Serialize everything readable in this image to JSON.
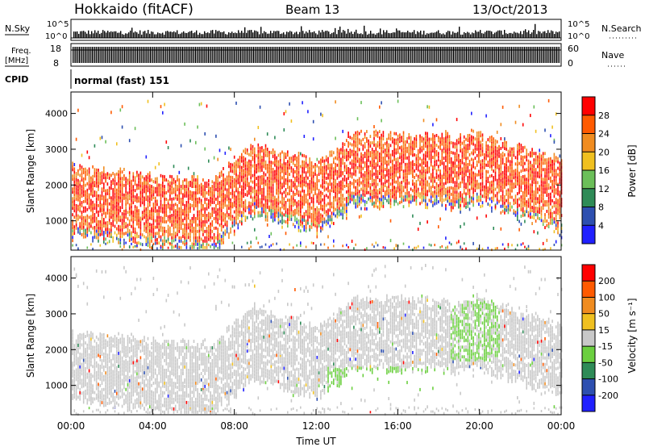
{
  "header": {
    "station": "Hokkaido (fitACF)",
    "beam": "Beam 13",
    "date": "13/Oct/2013"
  },
  "top_panels": {
    "nsky_label": "N.Sky",
    "nsky_ticks": [
      "10^5",
      "10^0"
    ],
    "nsearch_label": "N.Search",
    "nsearch_ticks": [
      "10^5",
      "10^0"
    ],
    "freq_label_line1": "Freq.",
    "freq_label_line2": "[MHz]",
    "freq_ticks": [
      "18",
      "8"
    ],
    "nave_label": "Nave",
    "nave_ticks": [
      "60",
      "0"
    ],
    "cpid_label": "CPID",
    "cpid_text": "normal (fast) 151"
  },
  "chart_data": [
    {
      "type": "heatmap",
      "name": "power-panel",
      "ylabel": "Slant Range [km]",
      "yticks": [
        1000,
        2000,
        3000,
        4000
      ],
      "ylim": [
        180,
        4600
      ],
      "xlim": [
        0,
        24
      ],
      "colorbar": {
        "label": "Power [dB]",
        "tick_labels": [
          "28",
          "24",
          "20",
          "16",
          "12",
          "8",
          "4"
        ],
        "colors": [
          "#2020ff",
          "#2d4fb0",
          "#2e8b57",
          "#6bbf59",
          "#f0c020",
          "#f08c20",
          "#ff5a00",
          "#ff0000"
        ]
      }
    },
    {
      "type": "heatmap",
      "name": "velocity-panel",
      "ylabel": "Slant Range [km]",
      "yticks": [
        1000,
        2000,
        3000,
        4000
      ],
      "ylim": [
        180,
        4600
      ],
      "xlim": [
        0,
        24
      ],
      "xticks": [
        "00:00",
        "04:00",
        "08:00",
        "12:00",
        "16:00",
        "20:00",
        "00:00"
      ],
      "xlabel": "Time UT",
      "colorbar": {
        "label": "Velocity [m s⁻¹]",
        "tick_labels": [
          "200",
          "100",
          "50",
          "15",
          "-15",
          "-50",
          "-100",
          "-200"
        ],
        "colors": [
          "#ff0000",
          "#ff5a00",
          "#f08c20",
          "#f0c020",
          "#c8c8c8",
          "#6bcf3f",
          "#2e8b57",
          "#2d4fb0",
          "#2020ff"
        ]
      }
    }
  ]
}
